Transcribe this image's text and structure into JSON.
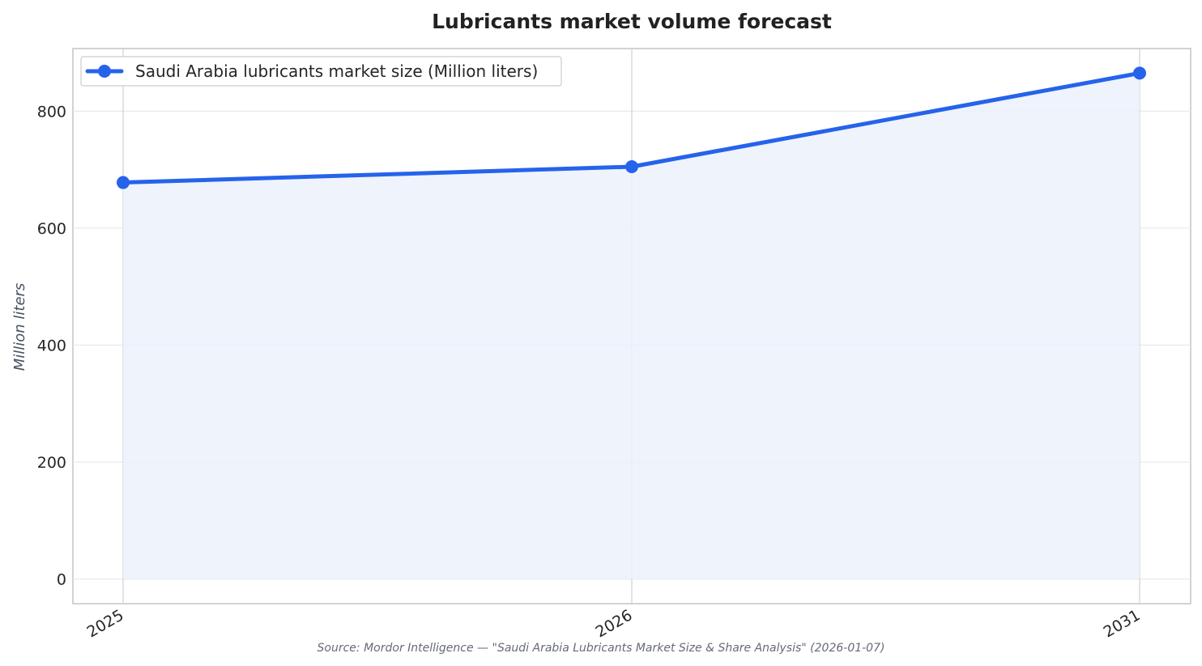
{
  "chart_data": {
    "type": "line",
    "title": "Lubricants market volume forecast",
    "xlabel": "",
    "ylabel": "Million liters",
    "categories": [
      "2025",
      "2026",
      "2031"
    ],
    "series": [
      {
        "name": "Saudi Arabia lubricants market size (Million liters)",
        "values": [
          678,
          705,
          865
        ]
      }
    ],
    "ylim": [
      -42,
      907
    ],
    "yticks": [
      0,
      200,
      400,
      600,
      800
    ],
    "ytick_labels": [
      "0",
      "200",
      "400",
      "600",
      "800"
    ],
    "grid": true,
    "area_fill": true,
    "legend_position": "top-left",
    "line_color": "#2563eb",
    "fill_color": "#ecf1fc",
    "source": "Source: Mordor Intelligence — \"Saudi Arabia Lubricants Market Size & Share Analysis\" (2026-01-07)"
  }
}
